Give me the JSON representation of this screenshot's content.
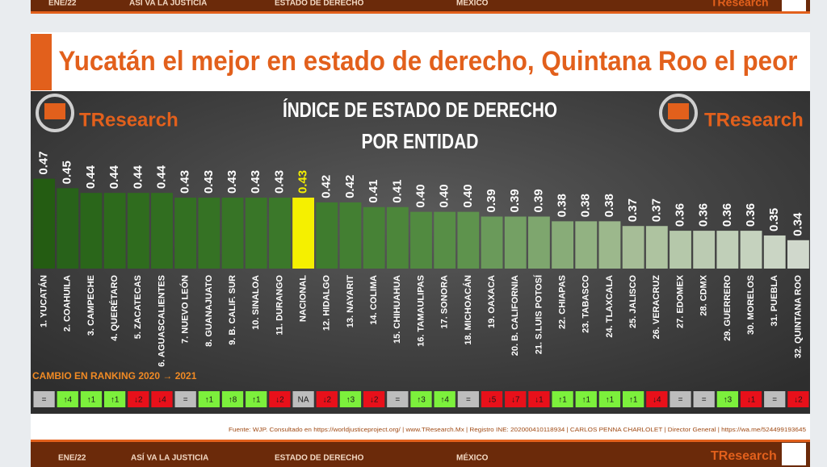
{
  "header": {
    "items": [
      "ENE/22",
      "ASÍ VA LA JUSTICIA",
      "ESTADO DE DERECHO",
      "MÉXICO"
    ],
    "brand": "TResearch"
  },
  "headline": "Yucatán el mejor en estado de derecho, Quintana Roo el peor",
  "brand": "TResearch",
  "chart_data": {
    "type": "bar",
    "title": "ÍNDICE DE ESTADO DE DERECHO",
    "subtitle": "POR ENTIDAD",
    "categories": [
      "1. YUCATÁN",
      "2. COAHUILA",
      "3. CAMPECHE",
      "4. QUERÉTARO",
      "5. ZACATECAS",
      "6. AGUASCALIENTES",
      "7. NUEVO LEÓN",
      "8. GUANAJUATO",
      "9. B. CALIF. SUR",
      "10. SINALOA",
      "11. DURANGO",
      "NACIONAL",
      "12. HIDALGO",
      "13. NAYARIT",
      "14. COLIMA",
      "15. CHIHUAHUA",
      "16. TAMAULIPAS",
      "17. SONORA",
      "18. MICHOACÁN",
      "19. OAXACA",
      "20. B. CALIFORNIA",
      "21. S.LUIS POTOSÍ",
      "22. CHIAPAS",
      "23. TABASCO",
      "24. TLAXCALA",
      "25. JALISCO",
      "26. VERACRUZ",
      "27. EDOMEX",
      "28. CDMX",
      "29. GUERRERO",
      "30. MORELOS",
      "31. PUEBLA",
      "32. QUINTANA ROO"
    ],
    "values": [
      0.47,
      0.45,
      0.44,
      0.44,
      0.44,
      0.44,
      0.43,
      0.43,
      0.43,
      0.43,
      0.43,
      0.43,
      0.42,
      0.42,
      0.41,
      0.41,
      0.4,
      0.4,
      0.4,
      0.39,
      0.39,
      0.39,
      0.38,
      0.38,
      0.38,
      0.37,
      0.37,
      0.36,
      0.36,
      0.36,
      0.36,
      0.35,
      0.34
    ],
    "value_labels": [
      "0.47",
      "0.45",
      "0.44",
      "0.44",
      "0.44",
      "0.44",
      "0.43",
      "0.43",
      "0.43",
      "0.43",
      "0.43",
      "0.43",
      "0.42",
      "0.42",
      "0.41",
      "0.41",
      "0.40",
      "0.40",
      "0.40",
      "0.39",
      "0.39",
      "0.39",
      "0.38",
      "0.38",
      "0.38",
      "0.37",
      "0.37",
      "0.36",
      "0.36",
      "0.36",
      "0.36",
      "0.35",
      "0.34"
    ],
    "colors": [
      "#245c12",
      "#28621a",
      "#2a661a",
      "#2d6a1c",
      "#2f6c1e",
      "#316e20",
      "#337022",
      "#357224",
      "#377426",
      "#397628",
      "#3b782a",
      "#f5f000",
      "#3f7c2e",
      "#437f32",
      "#478236",
      "#4c863a",
      "#518a40",
      "#578e46",
      "#5e934d",
      "#6a9a5a",
      "#74a064",
      "#7ea66e",
      "#88ac78",
      "#92b282",
      "#9cb88c",
      "#a6bd97",
      "#aec3a0",
      "#b5c8aa",
      "#bbcbb2",
      "#c0cfb8",
      "#c5d2be",
      "#cad5c4",
      "#d0d8cc"
    ],
    "ylim": [
      0.28,
      0.5
    ],
    "ranking_label": "CAMBIO EN RANKING 2020 → 2021",
    "ranking_changes": [
      "=",
      "↑4",
      "↑1",
      "↑1",
      "↓2",
      "↓4",
      "=",
      "↑1",
      "↑8",
      "↑1",
      "↓2",
      "NA",
      "↓2",
      "↑3",
      "↓2",
      "=",
      "↑3",
      "↑4",
      "=",
      "↓5",
      "↓7",
      "↓1",
      "↑1",
      "↑1",
      "↑1",
      "↑1",
      "↓4",
      "=",
      "=",
      "↑3",
      "↓1",
      "=",
      "↓2"
    ],
    "ranking_colors": [
      "#bdbdbd",
      "#7cf03c",
      "#7cf03c",
      "#7cf03c",
      "#e8101a",
      "#e8101a",
      "#bdbdbd",
      "#7cf03c",
      "#7cf03c",
      "#7cf03c",
      "#e8101a",
      "#bdbdbd",
      "#e8101a",
      "#7cf03c",
      "#e8101a",
      "#bdbdbd",
      "#7cf03c",
      "#7cf03c",
      "#bdbdbd",
      "#e8101a",
      "#e8101a",
      "#e8101a",
      "#7cf03c",
      "#7cf03c",
      "#7cf03c",
      "#7cf03c",
      "#e8101a",
      "#bdbdbd",
      "#bdbdbd",
      "#7cf03c",
      "#e8101a",
      "#bdbdbd",
      "#e8101a"
    ]
  },
  "source": "Fuente: WJP. Consultado en https://worldjusticeproject.org/ | www.TResearch.Mx | Registro INE: 202000410118934 | CARLOS PENNA CHARLOLET | Director General | https://wa.me/524499193645",
  "footer": {
    "items": [
      "ENE/22",
      "ASÍ VA LA JUSTICIA",
      "ESTADO DE DERECHO",
      "MÉXICO"
    ],
    "brand": "TResearch"
  }
}
